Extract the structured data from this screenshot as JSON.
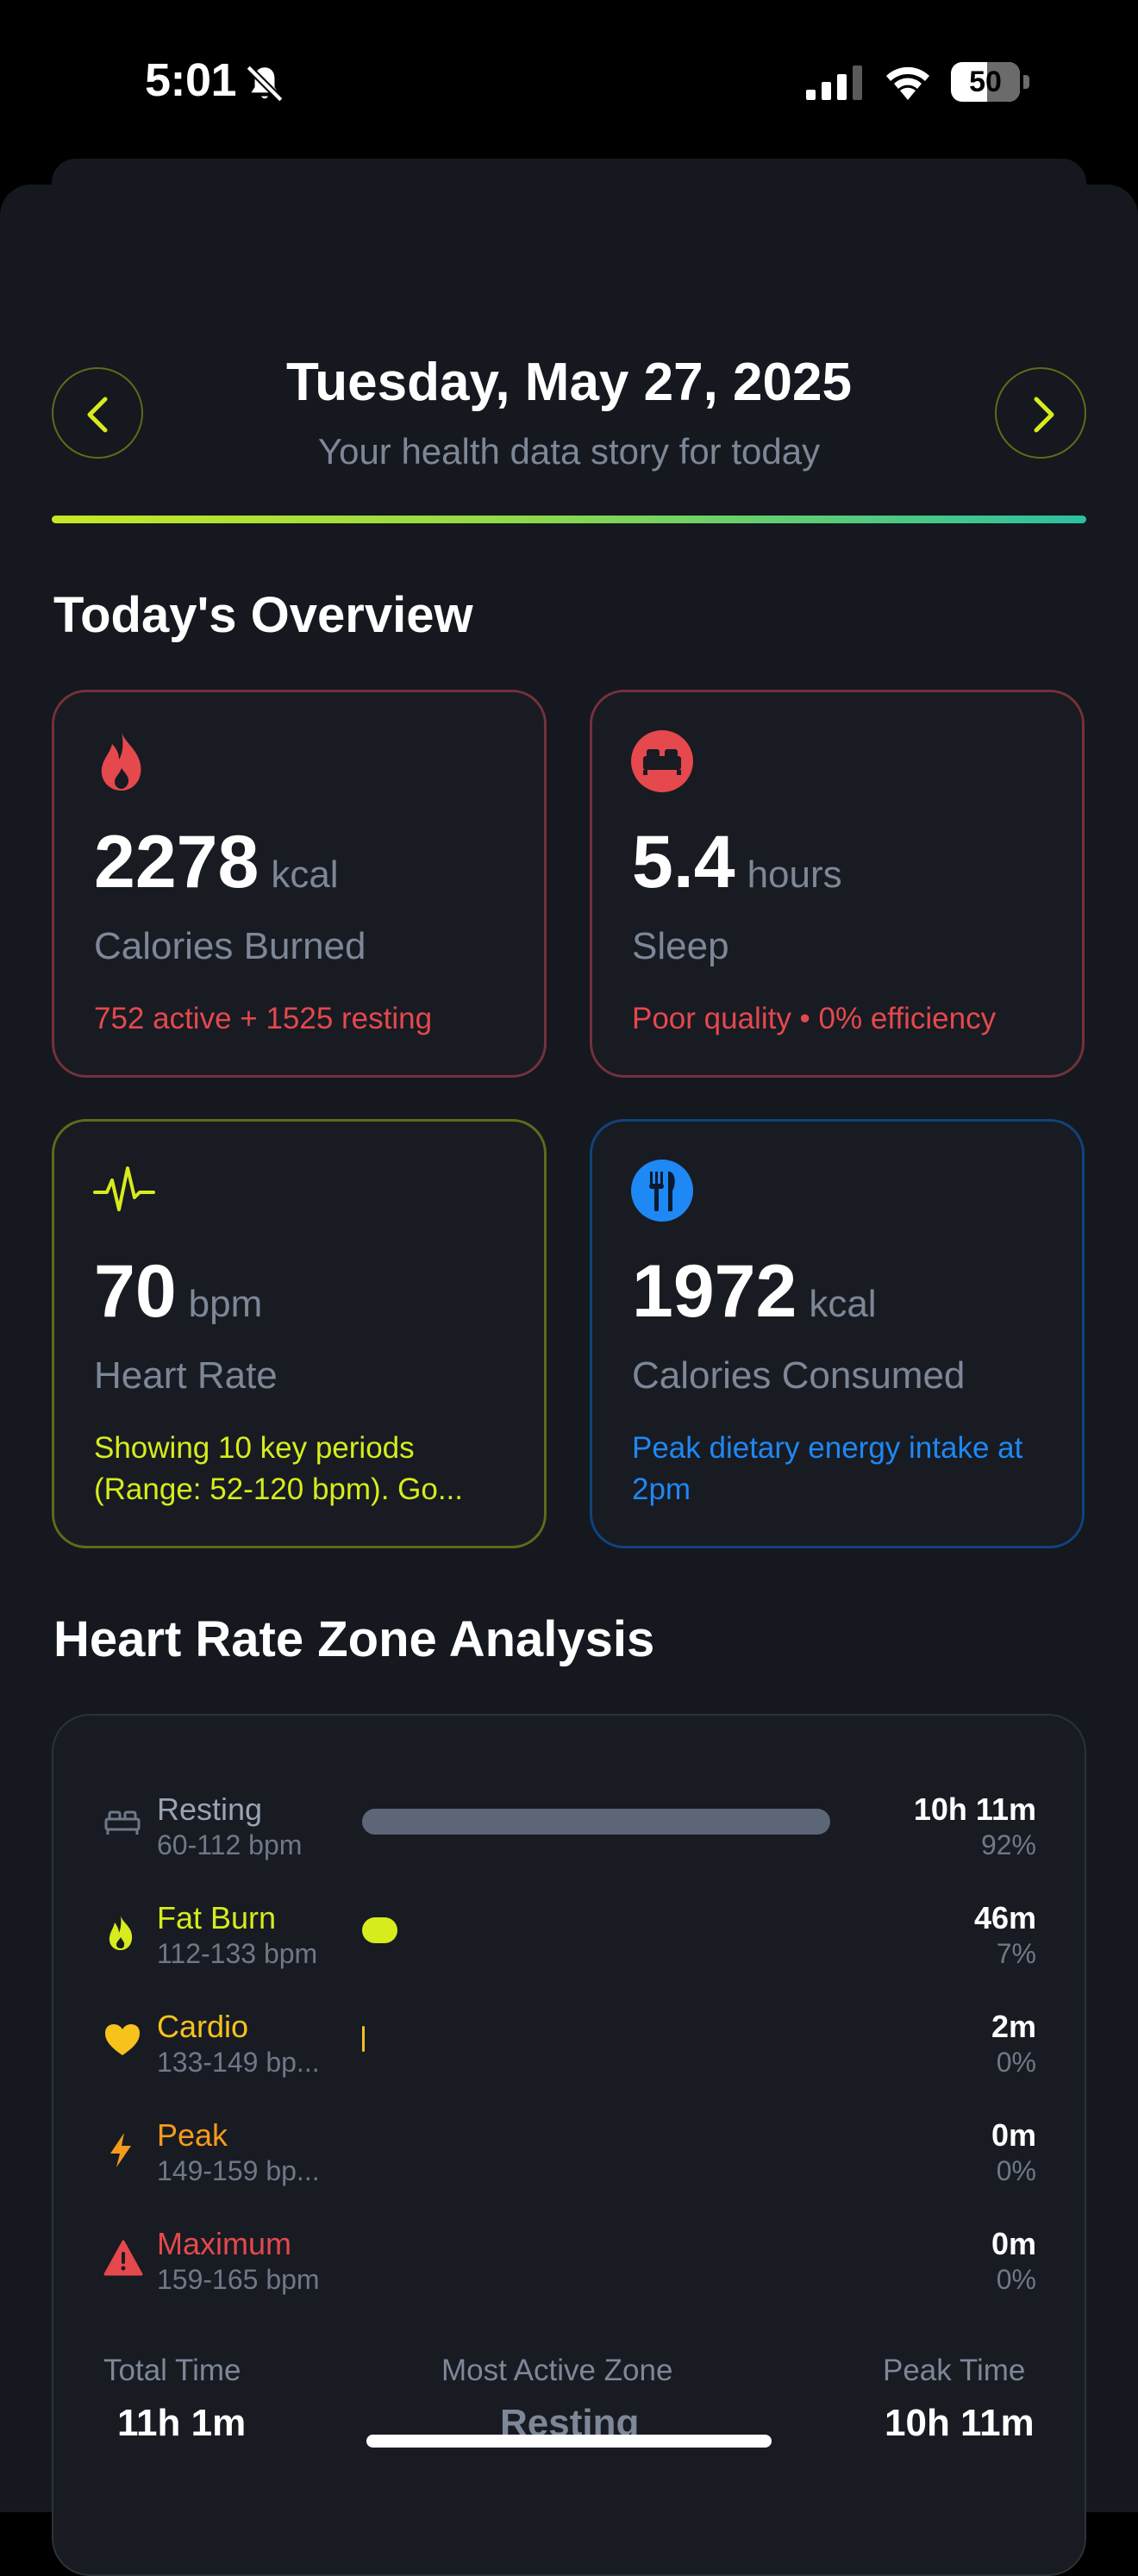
{
  "status_bar": {
    "time": "5:01",
    "battery": "50"
  },
  "header": {
    "date": "Tuesday, May 27, 2025",
    "subtitle": "Your health data story for today"
  },
  "overview": {
    "title": "Today's Overview",
    "cards": [
      {
        "value": "2278",
        "unit": "kcal",
        "label": "Calories Burned",
        "note": "752 active + 1525 resting",
        "icon": "flame-icon",
        "color": "#e5484d"
      },
      {
        "value": "5.4",
        "unit": "hours",
        "label": "Sleep",
        "note": "Poor quality • 0% efficiency",
        "icon": "bed-icon",
        "color": "#e5484d"
      },
      {
        "value": "70",
        "unit": "bpm",
        "label": "Heart Rate",
        "note": "Showing 10 key periods (Range: 52-120 bpm). Go...",
        "icon": "heartbeat-icon",
        "color": "#d6ec1c"
      },
      {
        "value": "1972",
        "unit": "kcal",
        "label": "Calories Consumed",
        "note": "Peak dietary energy intake at 2pm",
        "icon": "fork-knife-icon",
        "color": "#1e88f5"
      }
    ]
  },
  "zones": {
    "title": "Heart Rate Zone Analysis",
    "items": [
      {
        "name": "Resting",
        "range": "60-112 bpm",
        "time": "10h 11m",
        "pct": "92%",
        "fraction": 0.92,
        "color": "#ffffff",
        "bar_color": "#5d6677",
        "icon": "bed-icon"
      },
      {
        "name": "Fat Burn",
        "range": "112-133 bpm",
        "time": "46m",
        "pct": "7%",
        "fraction": 0.07,
        "color": "#d6ec1c",
        "bar_color": "#d6ec1c",
        "icon": "flame-icon"
      },
      {
        "name": "Cardio",
        "range": "133-149 bp...",
        "time": "2m",
        "pct": "0%",
        "fraction": 0.0,
        "color": "#f7c21c",
        "bar_color": "#f7c21c",
        "icon": "heart-icon"
      },
      {
        "name": "Peak",
        "range": "149-159 bp...",
        "time": "0m",
        "pct": "0%",
        "fraction": 0.0,
        "color": "#f59a1c",
        "bar_color": "#f59a1c",
        "icon": "bolt-icon"
      },
      {
        "name": "Maximum",
        "range": "159-165 bpm",
        "time": "0m",
        "pct": "0%",
        "fraction": 0.0,
        "color": "#e5484d",
        "bar_color": "#e5484d",
        "icon": "warning-icon"
      }
    ],
    "summary": {
      "total_time_label": "Total Time",
      "total_time": "11h 1m",
      "most_active_label": "Most Active Zone",
      "most_active": "Resting",
      "peak_time_label": "Peak Time",
      "peak_time": "10h 11m"
    }
  }
}
